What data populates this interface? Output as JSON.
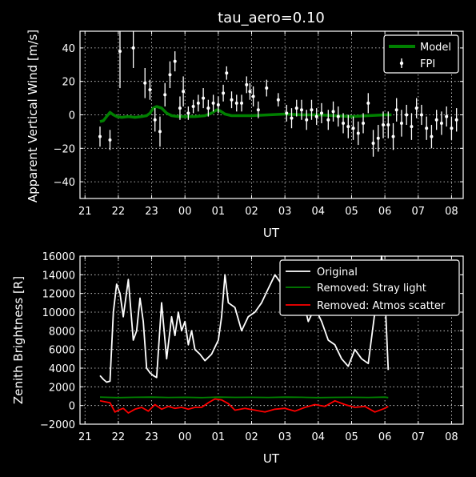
{
  "chart_data": [
    {
      "type": "scatter",
      "title": "tau_aero=0.10",
      "xlabel": "UT",
      "ylabel": "Apparent Vertical Wind [m/s]",
      "xlim": [
        20.85,
        32.35
      ],
      "ylim": [
        -50,
        50
      ],
      "xticks": [
        21,
        22,
        23,
        24,
        25,
        26,
        27,
        28,
        29,
        30,
        31,
        32
      ],
      "xtick_labels": [
        "21",
        "22",
        "23",
        "00",
        "01",
        "02",
        "03",
        "04",
        "05",
        "06",
        "07",
        "08"
      ],
      "yticks": [
        -40,
        -20,
        0,
        20,
        40
      ],
      "ytick_labels": [
        "−40",
        "−20",
        "0",
        "20",
        "40"
      ],
      "grid": true,
      "legend_position": "top-right",
      "colors": {
        "model": "#008000",
        "fpi": "#ffffff"
      },
      "series": [
        {
          "name": "Model",
          "kind": "line",
          "x": [
            21.45,
            21.55,
            21.65,
            21.75,
            21.85,
            21.95,
            22.1,
            22.3,
            22.5,
            22.7,
            22.85,
            22.95,
            23.05,
            23.15,
            23.3,
            23.45,
            23.6,
            23.8,
            24.0,
            24.3,
            24.6,
            24.8,
            24.95,
            25.05,
            25.2,
            25.4,
            25.7,
            26.0,
            26.5,
            27.0,
            27.5,
            28.0,
            28.5,
            29.0,
            29.5,
            30.0,
            30.2
          ],
          "y": [
            -4,
            -3.5,
            -1,
            1.5,
            0,
            -1,
            -1.5,
            -1,
            -1.5,
            -1,
            -0.5,
            1,
            4,
            5,
            4,
            1,
            -0.5,
            -1,
            -1,
            -1,
            -0.5,
            1,
            3,
            2.5,
            0.5,
            -0.5,
            -0.5,
            -0.5,
            0,
            0.5,
            0,
            0,
            -0.5,
            -1,
            -0.5,
            0,
            0
          ]
        },
        {
          "name": "FPI",
          "kind": "errorbar",
          "points": [
            {
              "x": 21.45,
              "y": -13,
              "err": 6
            },
            {
              "x": 21.75,
              "y": -15,
              "err": 6
            },
            {
              "x": 22.05,
              "y": 38,
              "err": 22
            },
            {
              "x": 22.45,
              "y": 40,
              "err": 12
            },
            {
              "x": 22.8,
              "y": 19,
              "err": 9
            },
            {
              "x": 22.95,
              "y": 15,
              "err": 6
            },
            {
              "x": 23.1,
              "y": -3,
              "err": 7
            },
            {
              "x": 23.25,
              "y": -10,
              "err": 9
            },
            {
              "x": 23.4,
              "y": 12,
              "err": 7
            },
            {
              "x": 23.55,
              "y": 24,
              "err": 8
            },
            {
              "x": 23.7,
              "y": 32,
              "err": 6
            },
            {
              "x": 23.85,
              "y": 4,
              "err": 7
            },
            {
              "x": 23.95,
              "y": 14,
              "err": 9
            },
            {
              "x": 24.1,
              "y": 1,
              "err": 4
            },
            {
              "x": 24.25,
              "y": 5,
              "err": 4
            },
            {
              "x": 24.4,
              "y": 7,
              "err": 5
            },
            {
              "x": 24.55,
              "y": 10,
              "err": 6
            },
            {
              "x": 24.7,
              "y": 4,
              "err": 5
            },
            {
              "x": 24.85,
              "y": 7,
              "err": 5
            },
            {
              "x": 25.0,
              "y": 6,
              "err": 5
            },
            {
              "x": 25.15,
              "y": 13,
              "err": 5
            },
            {
              "x": 25.25,
              "y": 25,
              "err": 4
            },
            {
              "x": 25.4,
              "y": 9,
              "err": 5
            },
            {
              "x": 25.55,
              "y": 7,
              "err": 5
            },
            {
              "x": 25.7,
              "y": 7,
              "err": 5
            },
            {
              "x": 25.85,
              "y": 18,
              "err": 5
            },
            {
              "x": 25.95,
              "y": 14,
              "err": 5
            },
            {
              "x": 26.05,
              "y": 11,
              "err": 6
            },
            {
              "x": 26.2,
              "y": 3,
              "err": 5
            },
            {
              "x": 26.45,
              "y": 16,
              "err": 5
            },
            {
              "x": 26.8,
              "y": 9,
              "err": 4
            },
            {
              "x": 27.05,
              "y": 1,
              "err": 5
            },
            {
              "x": 27.2,
              "y": -2,
              "err": 6
            },
            {
              "x": 27.35,
              "y": 4,
              "err": 5
            },
            {
              "x": 27.5,
              "y": 3,
              "err": 6
            },
            {
              "x": 27.65,
              "y": -3,
              "err": 6
            },
            {
              "x": 27.8,
              "y": 3,
              "err": 6
            },
            {
              "x": 27.95,
              "y": -1,
              "err": 5
            },
            {
              "x": 28.1,
              "y": 1,
              "err": 6
            },
            {
              "x": 28.3,
              "y": -3,
              "err": 6
            },
            {
              "x": 28.45,
              "y": 2,
              "err": 6
            },
            {
              "x": 28.6,
              "y": -1,
              "err": 6
            },
            {
              "x": 28.75,
              "y": -5,
              "err": 6
            },
            {
              "x": 28.9,
              "y": -7,
              "err": 7
            },
            {
              "x": 29.05,
              "y": -8,
              "err": 7
            },
            {
              "x": 29.2,
              "y": -11,
              "err": 7
            },
            {
              "x": 29.35,
              "y": -5,
              "err": 6
            },
            {
              "x": 29.5,
              "y": 7,
              "err": 6
            },
            {
              "x": 29.65,
              "y": -17,
              "err": 8
            },
            {
              "x": 29.8,
              "y": -14,
              "err": 8
            },
            {
              "x": 29.95,
              "y": -6,
              "err": 8
            },
            {
              "x": 30.1,
              "y": -6,
              "err": 8
            },
            {
              "x": 30.25,
              "y": -13,
              "err": 8
            },
            {
              "x": 30.35,
              "y": 3,
              "err": 7
            },
            {
              "x": 30.5,
              "y": -5,
              "err": 8
            },
            {
              "x": 30.65,
              "y": 0,
              "err": 6
            },
            {
              "x": 30.8,
              "y": -7,
              "err": 8
            },
            {
              "x": 30.95,
              "y": 4,
              "err": 6
            },
            {
              "x": 31.1,
              "y": 0,
              "err": 6
            },
            {
              "x": 31.25,
              "y": -8,
              "err": 7
            },
            {
              "x": 31.4,
              "y": -13,
              "err": 7
            },
            {
              "x": 31.55,
              "y": -3,
              "err": 6
            },
            {
              "x": 31.7,
              "y": -5,
              "err": 7
            },
            {
              "x": 31.85,
              "y": -1,
              "err": 6
            },
            {
              "x": 32.0,
              "y": -8,
              "err": 7
            },
            {
              "x": 32.15,
              "y": -3,
              "err": 7
            }
          ]
        }
      ]
    },
    {
      "type": "line",
      "title": "",
      "xlabel": "UT",
      "ylabel": "Zenith Brightness [R]",
      "xlim": [
        20.85,
        32.35
      ],
      "ylim": [
        -2000,
        16000
      ],
      "xticks": [
        21,
        22,
        23,
        24,
        25,
        26,
        27,
        28,
        29,
        30,
        31,
        32
      ],
      "xtick_labels": [
        "21",
        "22",
        "23",
        "00",
        "01",
        "02",
        "03",
        "04",
        "05",
        "06",
        "07",
        "08"
      ],
      "yticks": [
        -2000,
        0,
        2000,
        4000,
        6000,
        8000,
        10000,
        12000,
        14000,
        16000
      ],
      "ytick_labels": [
        "−2000",
        "0",
        "2000",
        "4000",
        "6000",
        "8000",
        "10000",
        "12000",
        "14000",
        "16000"
      ],
      "grid": true,
      "legend_position": "top-right",
      "colors": {
        "original": "#ffffff",
        "stray": "#008000",
        "atmos": "#ff0000"
      },
      "series": [
        {
          "name": "Original",
          "x": [
            21.45,
            21.55,
            21.65,
            21.75,
            21.85,
            21.95,
            22.05,
            22.15,
            22.3,
            22.45,
            22.55,
            22.65,
            22.75,
            22.85,
            22.95,
            23.05,
            23.15,
            23.3,
            23.45,
            23.6,
            23.7,
            23.8,
            23.9,
            24.0,
            24.1,
            24.2,
            24.3,
            24.45,
            24.6,
            24.8,
            25.0,
            25.1,
            25.2,
            25.3,
            25.5,
            25.7,
            25.9,
            26.1,
            26.3,
            26.5,
            26.7,
            26.9,
            27.1,
            27.3,
            27.5,
            27.7,
            27.9,
            28.1,
            28.3,
            28.5,
            28.7,
            28.9,
            29.1,
            29.3,
            29.5,
            29.7,
            29.9,
            30.0,
            30.1
          ],
          "y": [
            3200,
            2800,
            2500,
            2600,
            10000,
            13000,
            12000,
            9500,
            13500,
            7000,
            8000,
            11500,
            9000,
            4000,
            3500,
            3200,
            3000,
            11000,
            5000,
            9500,
            7500,
            10000,
            8000,
            9000,
            6500,
            8000,
            6000,
            5500,
            4800,
            5500,
            7000,
            9500,
            14000,
            11000,
            10500,
            8000,
            9500,
            10000,
            11000,
            12500,
            14000,
            13000,
            12000,
            11000,
            12000,
            9000,
            10500,
            9000,
            7000,
            6500,
            5000,
            4200,
            6000,
            5000,
            4500,
            10000,
            16000,
            12000,
            3800
          ]
        },
        {
          "name": "Removed: Stray light",
          "x": [
            21.45,
            22.0,
            22.5,
            23.0,
            23.5,
            24.0,
            24.5,
            25.0,
            25.5,
            26.0,
            26.5,
            27.0,
            27.5,
            28.0,
            28.5,
            29.0,
            29.5,
            30.0,
            30.1
          ],
          "y": [
            900,
            850,
            880,
            900,
            860,
            880,
            850,
            900,
            870,
            880,
            860,
            900,
            880,
            850,
            870,
            880,
            860,
            900,
            850
          ]
        },
        {
          "name": "Removed: Atmos scatter",
          "x": [
            21.45,
            21.6,
            21.75,
            21.9,
            22.0,
            22.15,
            22.3,
            22.5,
            22.7,
            22.9,
            23.1,
            23.3,
            23.5,
            23.7,
            23.9,
            24.1,
            24.3,
            24.5,
            24.7,
            24.9,
            25.1,
            25.3,
            25.5,
            25.8,
            26.1,
            26.4,
            26.7,
            27.0,
            27.3,
            27.6,
            27.9,
            28.2,
            28.5,
            28.8,
            29.1,
            29.4,
            29.7,
            30.0,
            30.1
          ],
          "y": [
            500,
            400,
            300,
            -700,
            -500,
            -300,
            -800,
            -400,
            -200,
            -600,
            100,
            -400,
            -100,
            -300,
            -200,
            -400,
            -200,
            -200,
            300,
            700,
            600,
            200,
            -500,
            -300,
            -500,
            -700,
            -400,
            -300,
            -600,
            -200,
            100,
            -100,
            500,
            100,
            -200,
            -100,
            -700,
            -300,
            -100
          ]
        }
      ]
    }
  ]
}
